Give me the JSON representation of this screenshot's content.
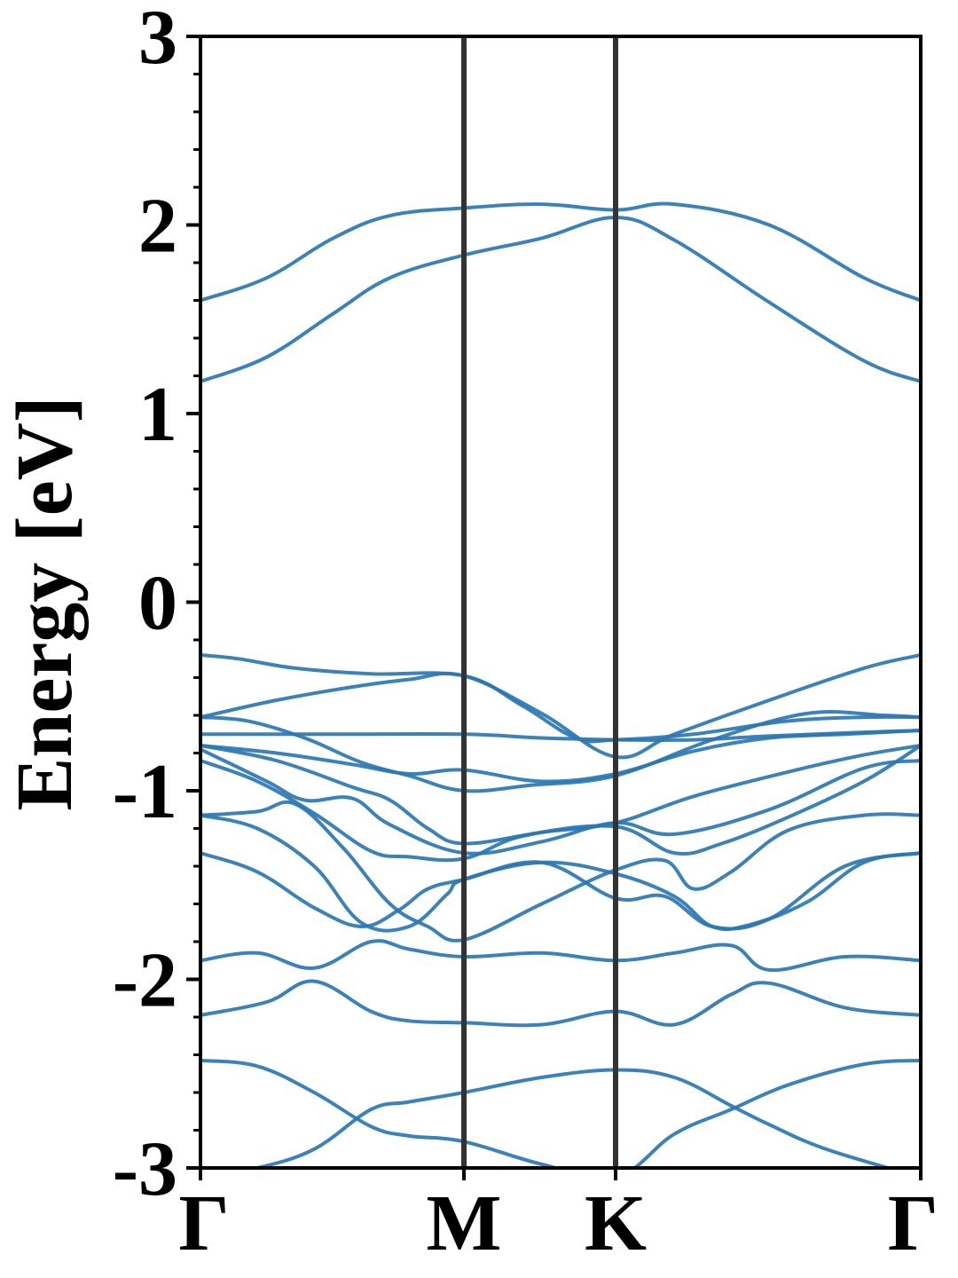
{
  "chart_data": {
    "type": "line",
    "title": "",
    "xlabel": "",
    "ylabel": "Energy [eV]",
    "ylim": [
      -3,
      3
    ],
    "xlim": [
      0,
      3.8
    ],
    "yticks": [
      -3,
      -2,
      -1,
      0,
      1,
      2,
      3
    ],
    "ytick_labels": [
      "-3",
      "-2",
      "-1",
      "0",
      "1",
      "2",
      "3"
    ],
    "y_minor_step": 0.2,
    "xticks": [
      0,
      1.39,
      2.19,
      3.8
    ],
    "xtick_labels": [
      "Γ",
      "M",
      "K",
      "Γ"
    ],
    "vlines": [
      1.39,
      2.19
    ],
    "grid": false,
    "legend": "none",
    "band_color": "#2a77b4",
    "vline_color": "#333333",
    "series": [
      {
        "x": [
          0,
          0.35,
          0.7,
          1.0,
          1.39,
          1.8,
          2.19,
          2.5,
          3.0,
          3.5,
          3.8
        ],
        "values": [
          1.6,
          1.72,
          1.93,
          2.05,
          2.09,
          2.11,
          2.08,
          2.11,
          2.0,
          1.72,
          1.6
        ]
      },
      {
        "x": [
          0,
          0.35,
          0.7,
          1.0,
          1.39,
          1.8,
          2.19,
          2.5,
          3.0,
          3.5,
          3.8
        ],
        "values": [
          1.17,
          1.3,
          1.53,
          1.72,
          1.84,
          1.93,
          2.04,
          1.92,
          1.59,
          1.28,
          1.17
        ]
      },
      {
        "x": [
          0,
          0.2,
          0.5,
          0.9,
          1.39,
          1.7,
          1.98,
          2.19,
          2.6,
          3.1,
          3.5,
          3.8
        ],
        "values": [
          -0.28,
          -0.3,
          -0.35,
          -0.38,
          -0.39,
          -0.55,
          -0.72,
          -0.73,
          -0.7,
          -0.63,
          -0.61,
          -0.61
        ]
      },
      {
        "x": [
          0,
          0.4,
          0.8,
          1.1,
          1.39,
          1.8,
          2.19,
          2.5,
          3.0,
          3.5,
          3.8
        ],
        "values": [
          -0.61,
          -0.52,
          -0.45,
          -0.41,
          -0.39,
          -0.59,
          -0.82,
          -0.7,
          -0.52,
          -0.35,
          -0.28
        ]
      },
      {
        "x": [
          0,
          0.7,
          1.39,
          1.8,
          2.19,
          2.6,
          3.0,
          3.5,
          3.8
        ],
        "values": [
          -0.7,
          -0.7,
          -0.7,
          -0.72,
          -0.73,
          -0.73,
          -0.71,
          -0.69,
          -0.68
        ]
      },
      {
        "x": [
          0,
          0.25,
          0.55,
          0.85,
          1.1,
          1.39,
          1.75,
          2.19,
          2.7,
          3.2,
          3.6,
          3.8
        ],
        "values": [
          -0.61,
          -0.63,
          -0.72,
          -0.85,
          -0.92,
          -1.0,
          -0.97,
          -0.92,
          -0.73,
          -0.59,
          -0.6,
          -0.61
        ]
      },
      {
        "x": [
          0,
          0.4,
          0.8,
          1.1,
          1.39,
          1.8,
          2.19,
          2.6,
          3.0,
          3.4,
          3.8
        ],
        "values": [
          -0.76,
          -0.8,
          -0.86,
          -0.91,
          -0.89,
          -0.95,
          -0.91,
          -0.79,
          -0.72,
          -0.7,
          -0.68
        ]
      },
      {
        "x": [
          0,
          0.4,
          0.8,
          1.0,
          1.2,
          1.39,
          1.8,
          2.19,
          2.6,
          3.1,
          3.5,
          3.8
        ],
        "values": [
          -0.76,
          -0.84,
          -0.98,
          -1.05,
          -1.2,
          -1.28,
          -1.22,
          -1.17,
          -1.03,
          -0.9,
          -0.81,
          -0.76
        ]
      },
      {
        "x": [
          0,
          0.35,
          0.55,
          0.8,
          1.0,
          1.39,
          1.8,
          2.19,
          2.5,
          3.0,
          3.5,
          3.8
        ],
        "values": [
          -0.78,
          -0.95,
          -1.05,
          -1.04,
          -1.18,
          -1.33,
          -1.27,
          -1.17,
          -1.23,
          -1.1,
          -0.88,
          -0.84
        ]
      },
      {
        "x": [
          0,
          0.3,
          0.6,
          0.9,
          1.1,
          1.39,
          1.7,
          2.19,
          2.5,
          2.75,
          3.1,
          3.5,
          3.8
        ],
        "values": [
          -0.84,
          -0.95,
          -1.12,
          -1.32,
          -1.35,
          -1.36,
          -1.24,
          -1.19,
          -1.33,
          -1.28,
          -1.14,
          -0.95,
          -0.76
        ]
      },
      {
        "x": [
          0,
          0.3,
          0.5,
          0.75,
          1.0,
          1.2,
          1.39,
          1.8,
          2.19,
          2.45,
          2.6,
          2.8,
          3.1,
          3.5,
          3.8
        ],
        "values": [
          -1.13,
          -1.11,
          -1.07,
          -1.3,
          -1.6,
          -1.72,
          -1.79,
          -1.6,
          -1.42,
          -1.37,
          -1.52,
          -1.43,
          -1.21,
          -1.13,
          -1.13
        ]
      },
      {
        "x": [
          0,
          0.3,
          0.6,
          0.85,
          1.1,
          1.3,
          1.39,
          1.8,
          2.19,
          2.5,
          2.7,
          2.9,
          3.2,
          3.5,
          3.8
        ],
        "values": [
          -1.13,
          -1.2,
          -1.4,
          -1.7,
          -1.72,
          -1.55,
          -1.47,
          -1.38,
          -1.44,
          -1.56,
          -1.72,
          -1.71,
          -1.59,
          -1.38,
          -1.33
        ]
      },
      {
        "x": [
          0,
          0.3,
          0.6,
          0.85,
          1.05,
          1.2,
          1.39,
          1.8,
          2.19,
          2.45,
          2.7,
          3.0,
          3.4,
          3.8
        ],
        "values": [
          -1.33,
          -1.43,
          -1.62,
          -1.72,
          -1.63,
          -1.52,
          -1.47,
          -1.38,
          -1.57,
          -1.56,
          -1.72,
          -1.68,
          -1.4,
          -1.33
        ]
      },
      {
        "x": [
          0,
          0.3,
          0.6,
          0.9,
          1.1,
          1.39,
          1.8,
          2.19,
          2.5,
          2.8,
          3.0,
          3.4,
          3.8
        ],
        "values": [
          -1.9,
          -1.86,
          -1.94,
          -1.8,
          -1.84,
          -1.88,
          -1.86,
          -1.9,
          -1.86,
          -1.82,
          -1.95,
          -1.88,
          -1.9
        ]
      },
      {
        "x": [
          0,
          0.35,
          0.6,
          0.9,
          1.1,
          1.39,
          1.8,
          2.19,
          2.5,
          2.8,
          3.0,
          3.4,
          3.8
        ],
        "values": [
          -2.19,
          -2.12,
          -2.01,
          -2.17,
          -2.22,
          -2.23,
          -2.24,
          -2.17,
          -2.24,
          -2.08,
          -2.02,
          -2.15,
          -2.19
        ]
      },
      {
        "x": [
          0,
          0.3,
          0.6,
          0.9,
          1.1,
          1.39,
          1.8,
          2.19,
          2.5,
          2.8,
          3.1,
          3.5,
          3.8
        ],
        "values": [
          -2.43,
          -2.46,
          -2.6,
          -2.78,
          -2.83,
          -2.86,
          -2.98,
          -3.05,
          -2.82,
          -2.69,
          -2.56,
          -2.45,
          -2.43
        ]
      },
      {
        "x": [
          0,
          0.3,
          0.6,
          0.9,
          1.1,
          1.39,
          1.8,
          2.19,
          2.5,
          2.8,
          3.0,
          3.3,
          3.8
        ],
        "values": [
          -3.05,
          -3.0,
          -2.9,
          -2.69,
          -2.65,
          -2.6,
          -2.52,
          -2.48,
          -2.52,
          -2.67,
          -2.77,
          -2.9,
          -3.05
        ]
      }
    ]
  }
}
